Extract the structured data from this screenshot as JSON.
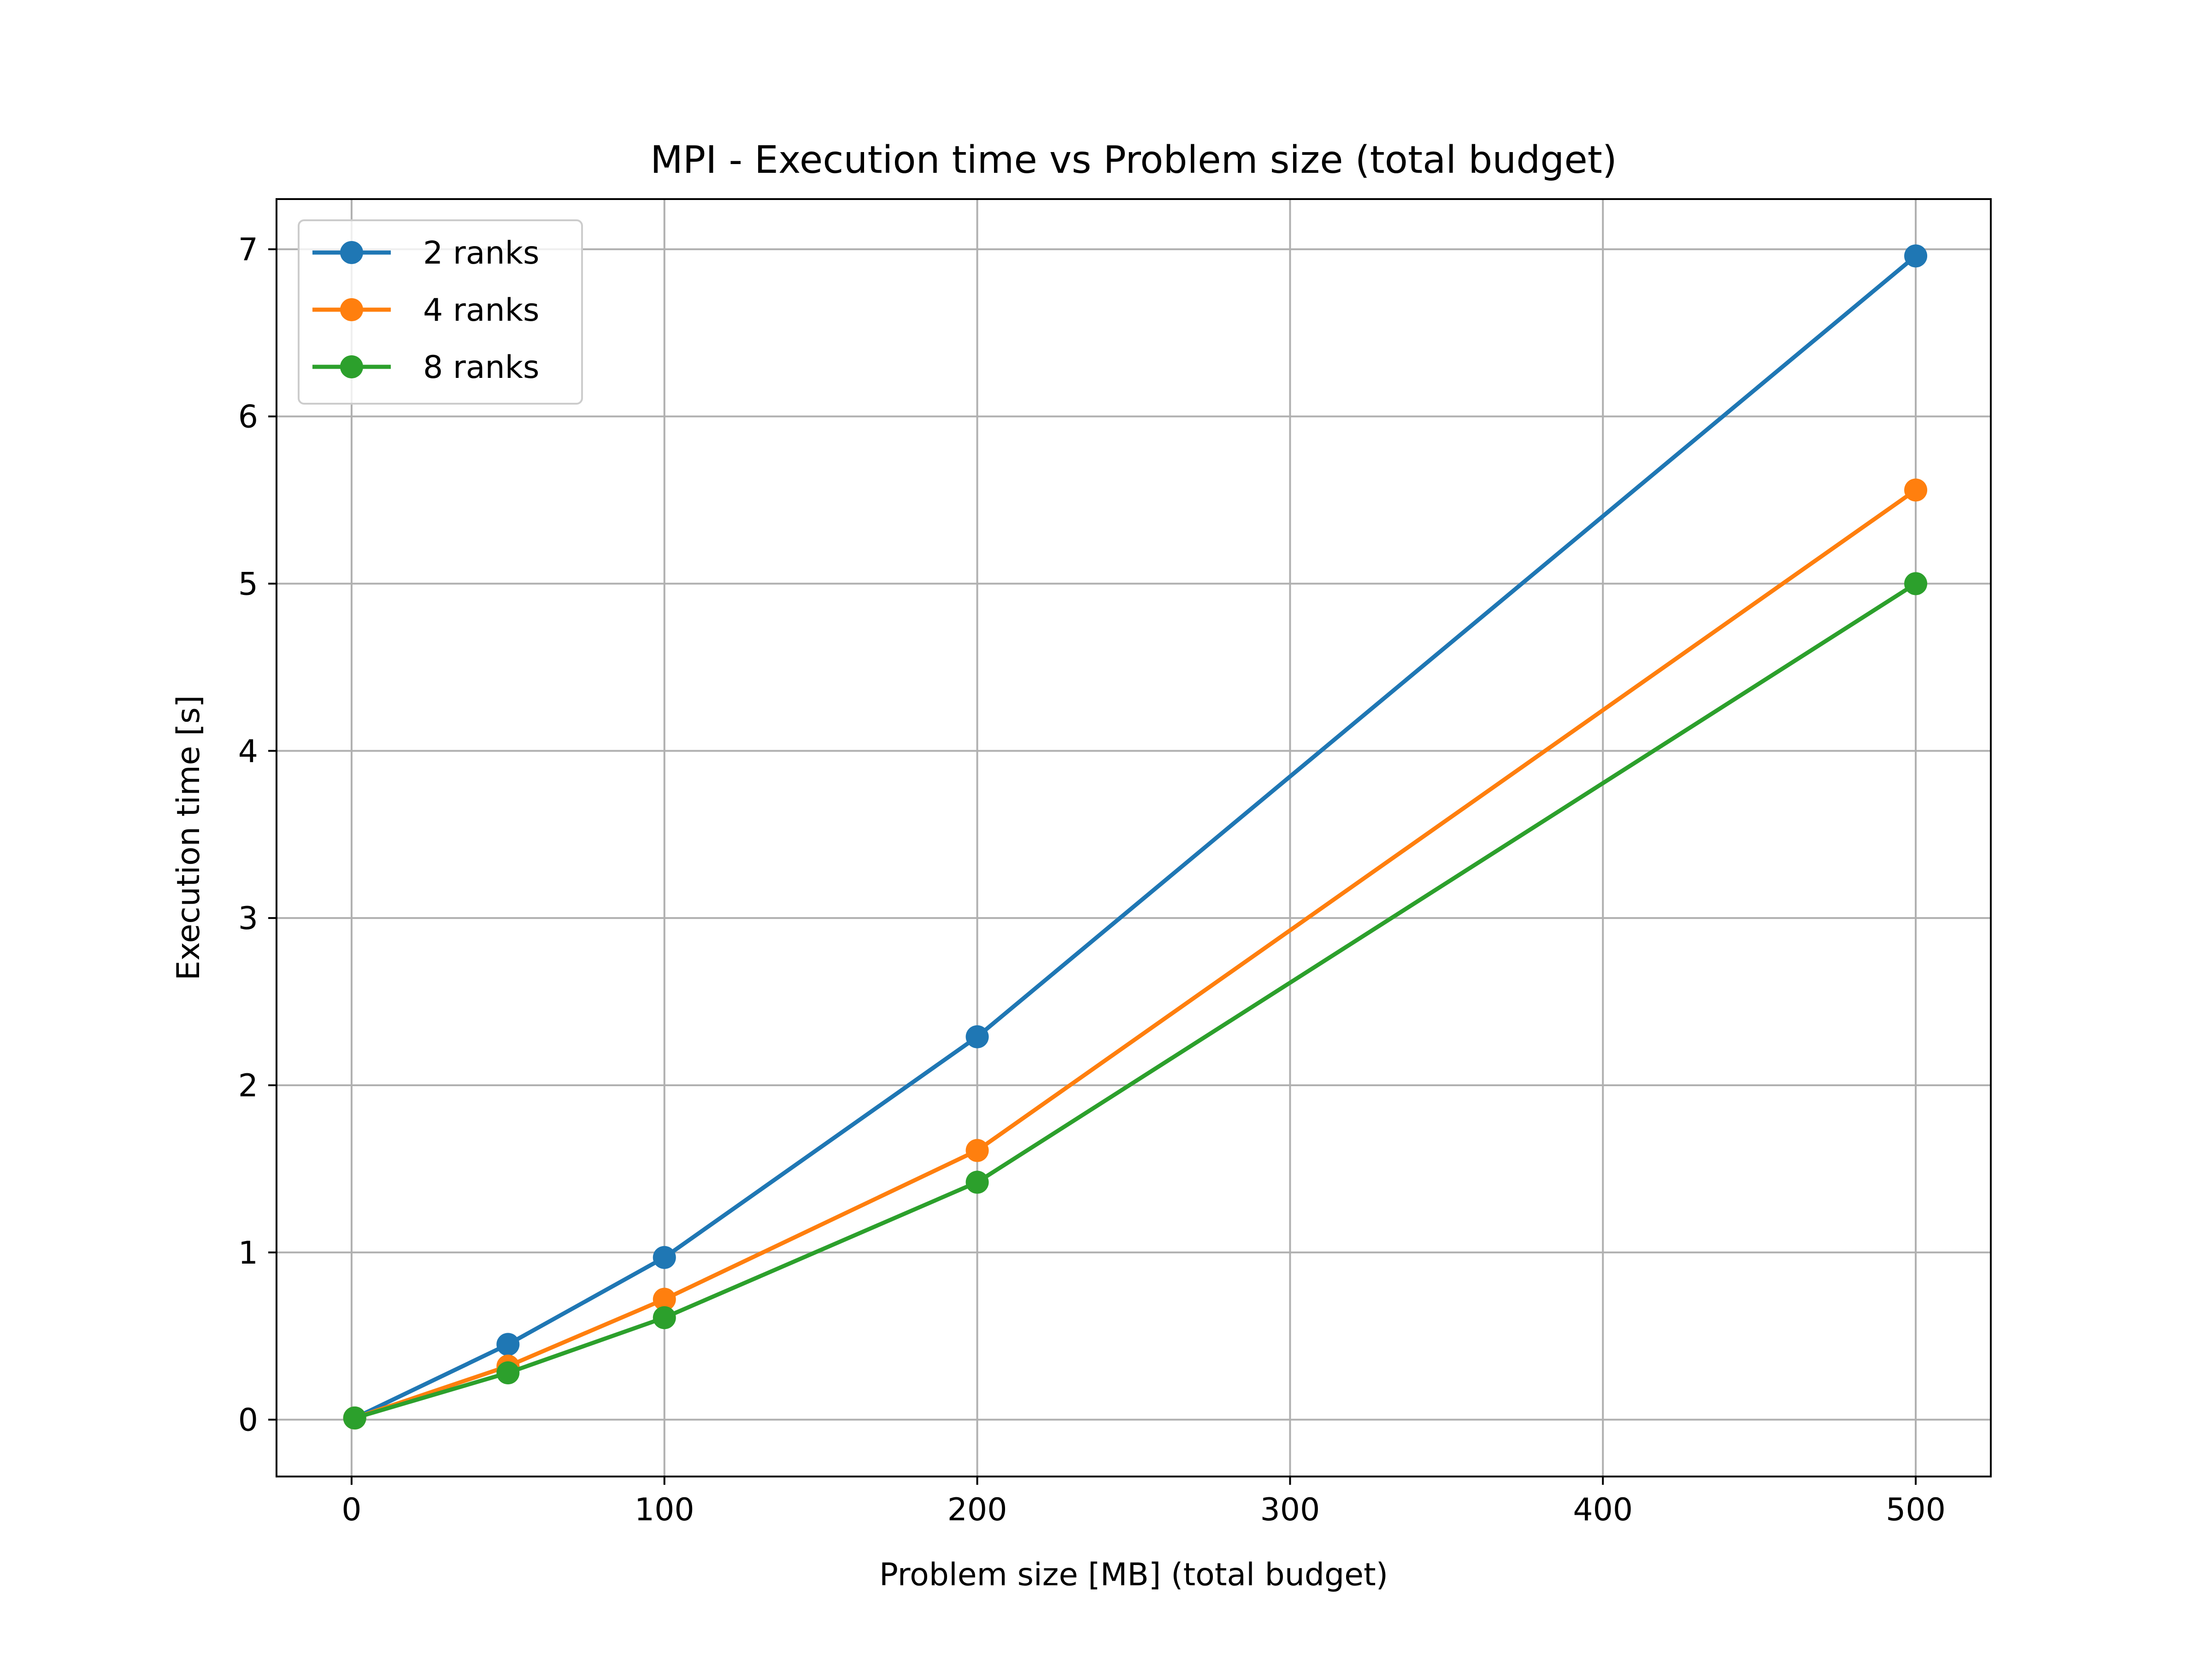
{
  "chart_data": {
    "type": "line",
    "title": "MPI - Execution time vs Problem size (total budget)",
    "xlabel": "Problem size [MB] (total budget)",
    "ylabel": "Execution time [s]",
    "xlim": [
      -24,
      524
    ],
    "ylim": [
      -0.34,
      7.3
    ],
    "xticks": [
      0,
      100,
      200,
      300,
      400,
      500
    ],
    "yticks": [
      0,
      1,
      2,
      3,
      4,
      5,
      6,
      7
    ],
    "grid": true,
    "legend": "top-left",
    "series": [
      {
        "name": "2 ranks",
        "color": "#1f77b4",
        "x": [
          1,
          50,
          100,
          200,
          500
        ],
        "y": [
          0.01,
          0.45,
          0.97,
          2.29,
          6.96
        ]
      },
      {
        "name": "4 ranks",
        "color": "#ff7f0e",
        "x": [
          1,
          50,
          100,
          200,
          500
        ],
        "y": [
          0.01,
          0.32,
          0.72,
          1.61,
          5.56
        ]
      },
      {
        "name": "8 ranks",
        "color": "#2ca02c",
        "x": [
          1,
          50,
          100,
          200,
          500
        ],
        "y": [
          0.01,
          0.28,
          0.61,
          1.42,
          5.0
        ]
      }
    ]
  }
}
